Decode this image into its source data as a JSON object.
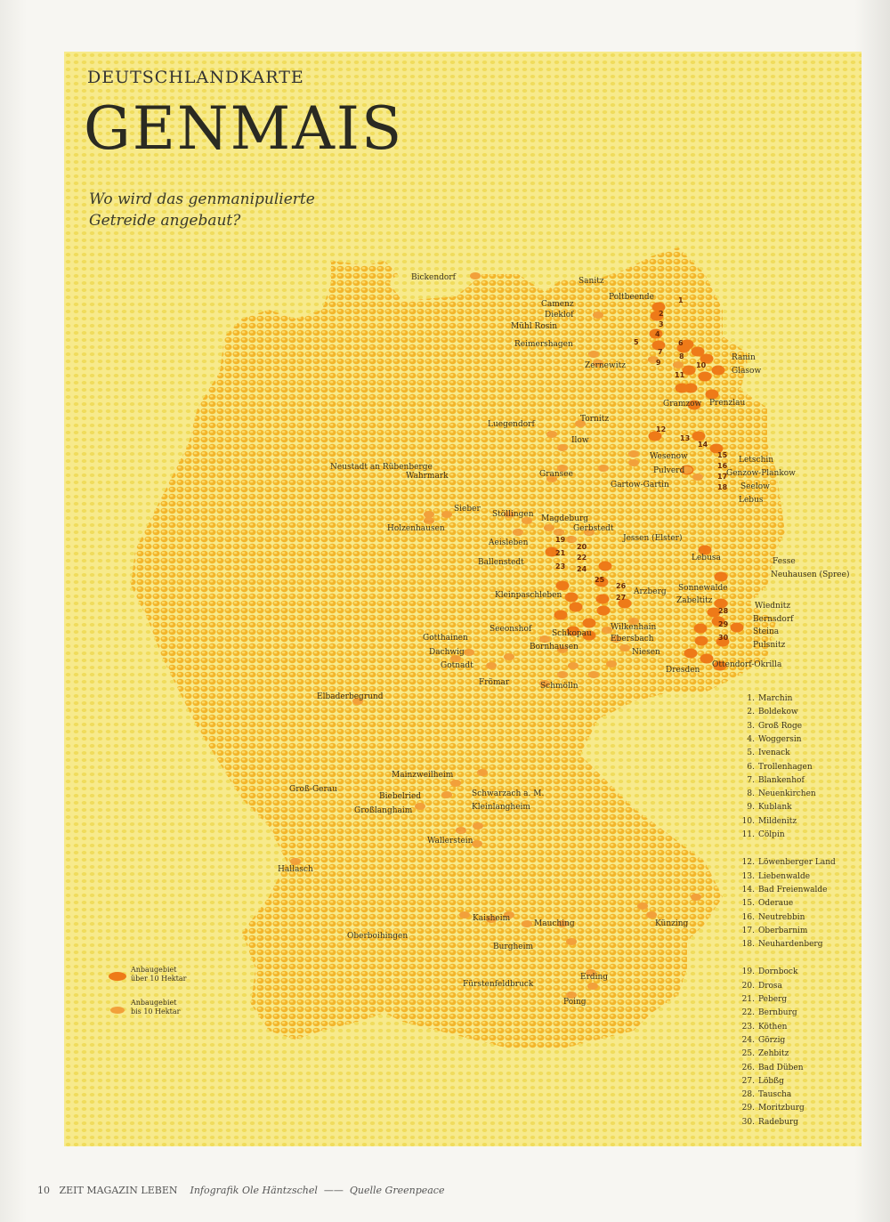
{
  "header": {
    "kicker": "DEUTSCHLANDKARTE",
    "title": "GENMAIS",
    "subtitle_line1": "Wo wird das genmanipulierte",
    "subtitle_line2": "Getreide angebaut?"
  },
  "colors": {
    "background": "#f7ea8c",
    "country": "#f6c63c",
    "large_area": "#ee7a18",
    "small_area": "#f2a03a",
    "text": "#3a3320"
  },
  "key": {
    "large_label_1": "Anbaugebiet",
    "large_label_2": "über 10 Hektar",
    "small_label_1": "Anbaugebiet",
    "small_label_2": "bis 10 Hektar"
  },
  "places": [
    {
      "name": "Bickendorf"
    },
    {
      "name": "Sanitz"
    },
    {
      "name": "Camenz"
    },
    {
      "name": "Dieklof"
    },
    {
      "name": "Poltbeende"
    },
    {
      "name": "Mühl Rosin"
    },
    {
      "name": "Reimershagen"
    },
    {
      "name": "Zernewitz"
    },
    {
      "name": "Ranin"
    },
    {
      "name": "Glasow"
    },
    {
      "name": "Gramzow"
    },
    {
      "name": "Prenzlau"
    },
    {
      "name": "Luegendorf"
    },
    {
      "name": "Tornitz"
    },
    {
      "name": "Ilow"
    },
    {
      "name": "Gransee"
    },
    {
      "name": "Wesenow"
    },
    {
      "name": "Pulverd"
    },
    {
      "name": "Gartow-Gartin"
    },
    {
      "name": "Letschin"
    },
    {
      "name": "Genzow-Plankow"
    },
    {
      "name": "Seelow"
    },
    {
      "name": "Lebus"
    },
    {
      "name": "Neustadt an Rübenberge"
    },
    {
      "name": "Wahrmark"
    },
    {
      "name": "Sieber"
    },
    {
      "name": "Stöllingen"
    },
    {
      "name": "Holzenhausen"
    },
    {
      "name": "Magdeburg"
    },
    {
      "name": "Gerbstedt"
    },
    {
      "name": "Aeisleben"
    },
    {
      "name": "Ballenstedt"
    },
    {
      "name": "Jessen (Elster)"
    },
    {
      "name": "Lebusa"
    },
    {
      "name": "Fesse"
    },
    {
      "name": "Neuhausen (Spree)"
    },
    {
      "name": "Kleinpaschleben"
    },
    {
      "name": "Arzberg"
    },
    {
      "name": "Sonnewalde"
    },
    {
      "name": "Zabeltitz"
    },
    {
      "name": "Wiednitz"
    },
    {
      "name": "Bernsdorf"
    },
    {
      "name": "Steina"
    },
    {
      "name": "Pulsnitz"
    },
    {
      "name": "Seeonshof"
    },
    {
      "name": "Gotthainen"
    },
    {
      "name": "Schkopau"
    },
    {
      "name": "Wilkenhain"
    },
    {
      "name": "Ebersbach"
    },
    {
      "name": "Niesen"
    },
    {
      "name": "Dachwig"
    },
    {
      "name": "Bornhausen"
    },
    {
      "name": "Dresden"
    },
    {
      "name": "Ottendorf-Okrilla"
    },
    {
      "name": "Gotnadt"
    },
    {
      "name": "Frömar"
    },
    {
      "name": "Schmölln"
    },
    {
      "name": "Elbaderbegrund"
    },
    {
      "name": "Mainzweilheim"
    },
    {
      "name": "Groß-Gerau"
    },
    {
      "name": "Biebelried"
    },
    {
      "name": "Schwarzach a. M."
    },
    {
      "name": "Großlanghaim"
    },
    {
      "name": "Kleinlangheim"
    },
    {
      "name": "Wallerstein"
    },
    {
      "name": "Hallasch"
    },
    {
      "name": "Kaisheim"
    },
    {
      "name": "Mauching"
    },
    {
      "name": "Künzing"
    },
    {
      "name": "Oberboihingen"
    },
    {
      "name": "Burgheim"
    },
    {
      "name": "Fürstenfeldbruck"
    },
    {
      "name": "Erding"
    },
    {
      "name": "Poing"
    }
  ],
  "markers": {
    "large_count": 30,
    "numbers": [
      "1",
      "2",
      "3",
      "4",
      "5",
      "6",
      "7",
      "8",
      "9",
      "10",
      "11",
      "12",
      "13",
      "14",
      "15",
      "16",
      "17",
      "18",
      "19",
      "20",
      "21",
      "22",
      "23",
      "24",
      "25",
      "26",
      "27",
      "28",
      "29",
      "30"
    ]
  },
  "legend_list": [
    {
      "n": "1.",
      "name": "Marchin"
    },
    {
      "n": "2.",
      "name": "Boldekow"
    },
    {
      "n": "3.",
      "name": "Groß Roge"
    },
    {
      "n": "4.",
      "name": "Woggersin"
    },
    {
      "n": "5.",
      "name": "Ivenack"
    },
    {
      "n": "6.",
      "name": "Trollenhagen"
    },
    {
      "n": "7.",
      "name": "Blankenhof"
    },
    {
      "n": "8.",
      "name": "Neuenkirchen"
    },
    {
      "n": "9.",
      "name": "Kublank"
    },
    {
      "n": "10.",
      "name": "Mildenitz"
    },
    {
      "n": "11.",
      "name": "Cölpin"
    },
    {
      "n": "12.",
      "name": "Löwenberger Land"
    },
    {
      "n": "13.",
      "name": "Liebenwalde"
    },
    {
      "n": "14.",
      "name": "Bad Freienwalde"
    },
    {
      "n": "15.",
      "name": "Oderaue"
    },
    {
      "n": "16.",
      "name": "Neutrebbin"
    },
    {
      "n": "17.",
      "name": "Oberbarnim"
    },
    {
      "n": "18.",
      "name": "Neuhardenberg"
    },
    {
      "n": "19.",
      "name": "Dornbock"
    },
    {
      "n": "20.",
      "name": "Drosa"
    },
    {
      "n": "21.",
      "name": "Peberg"
    },
    {
      "n": "22.",
      "name": "Bernburg"
    },
    {
      "n": "23.",
      "name": "Köthen"
    },
    {
      "n": "24.",
      "name": "Görzig"
    },
    {
      "n": "25.",
      "name": "Zehbitz"
    },
    {
      "n": "26.",
      "name": "Bad Düben"
    },
    {
      "n": "27.",
      "name": "Löbßg"
    },
    {
      "n": "28.",
      "name": "Tauscha"
    },
    {
      "n": "29.",
      "name": "Moritzburg"
    },
    {
      "n": "30.",
      "name": "Radeburg"
    }
  ],
  "footer": {
    "page_number": "10",
    "magazine": "ZEIT MAGAZIN LEBEN",
    "credit": "Infografik Ole Häntzschel",
    "separator": "——",
    "source": "Quelle Greenpeace"
  }
}
